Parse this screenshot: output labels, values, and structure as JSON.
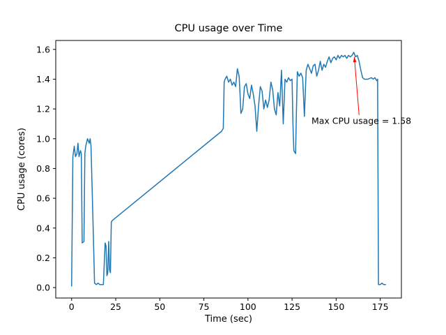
{
  "figure": {
    "background": "#ffffff"
  },
  "chart_data": {
    "type": "line",
    "title": "CPU usage over Time",
    "xlabel": "Time (sec)",
    "ylabel": "CPU usage (cores)",
    "xlim": [
      -9,
      187
    ],
    "ylim": [
      -0.07,
      1.66
    ],
    "xticks": [
      0,
      25,
      50,
      75,
      100,
      125,
      150,
      175
    ],
    "yticks": [
      0.0,
      0.2,
      0.4,
      0.6,
      0.8,
      1.0,
      1.2,
      1.4,
      1.6
    ],
    "grid": false,
    "legend": "none",
    "line_color": "#1f77b4",
    "series": [
      {
        "name": "CPU usage",
        "points": [
          [
            0,
            0.01
          ],
          [
            0.7,
            0.88
          ],
          [
            1.5,
            0.95
          ],
          [
            2.2,
            0.88
          ],
          [
            3,
            0.9
          ],
          [
            3.6,
            0.97
          ],
          [
            4.2,
            0.88
          ],
          [
            5,
            0.92
          ],
          [
            5.5,
            0.9
          ],
          [
            6,
            0.3
          ],
          [
            7,
            0.31
          ],
          [
            7.5,
            0.9
          ],
          [
            8,
            0.95
          ],
          [
            9,
            1.0
          ],
          [
            10,
            0.97
          ],
          [
            10.5,
            1.0
          ],
          [
            11,
            0.95
          ],
          [
            12,
            0.5
          ],
          [
            13,
            0.03
          ],
          [
            14,
            0.02
          ],
          [
            15,
            0.03
          ],
          [
            16,
            0.02
          ],
          [
            17,
            0.02
          ],
          [
            18,
            0.02
          ],
          [
            19,
            0.3
          ],
          [
            19.5,
            0.28
          ],
          [
            20,
            0.08
          ],
          [
            20.5,
            0.1
          ],
          [
            21,
            0.31
          ],
          [
            21.5,
            0.12
          ],
          [
            22,
            0.1
          ],
          [
            22.5,
            0.44
          ],
          [
            23,
            0.45
          ],
          [
            85,
            1.05
          ],
          [
            86,
            1.07
          ],
          [
            86.5,
            1.38
          ],
          [
            87,
            1.4
          ],
          [
            88,
            1.42
          ],
          [
            89,
            1.38
          ],
          [
            90,
            1.4
          ],
          [
            91,
            1.36
          ],
          [
            92,
            1.38
          ],
          [
            93,
            1.35
          ],
          [
            94,
            1.47
          ],
          [
            95,
            1.42
          ],
          [
            95.5,
            1.3
          ],
          [
            96,
            1.17
          ],
          [
            97,
            1.2
          ],
          [
            98,
            1.35
          ],
          [
            99,
            1.37
          ],
          [
            100,
            1.3
          ],
          [
            101,
            1.27
          ],
          [
            102,
            1.36
          ],
          [
            103,
            1.3
          ],
          [
            104,
            1.22
          ],
          [
            105,
            1.05
          ],
          [
            106,
            1.22
          ],
          [
            107,
            1.35
          ],
          [
            108,
            1.32
          ],
          [
            109,
            1.2
          ],
          [
            110,
            1.26
          ],
          [
            111,
            1.21
          ],
          [
            112,
            1.26
          ],
          [
            113,
            1.38
          ],
          [
            114,
            1.33
          ],
          [
            115,
            1.2
          ],
          [
            116,
            1.16
          ],
          [
            117,
            1.31
          ],
          [
            118,
            1.22
          ],
          [
            119,
            1.46
          ],
          [
            120,
            1.1
          ],
          [
            121,
            1.4
          ],
          [
            122,
            1.38
          ],
          [
            123,
            1.41
          ],
          [
            124,
            1.39
          ],
          [
            125,
            1.4
          ],
          [
            125.5,
            1.1
          ],
          [
            126,
            0.92
          ],
          [
            127,
            0.9
          ],
          [
            127.5,
            1.2
          ],
          [
            128,
            1.45
          ],
          [
            129,
            1.42
          ],
          [
            130,
            1.44
          ],
          [
            131,
            1.41
          ],
          [
            132,
            1.15
          ],
          [
            133,
            1.46
          ],
          [
            134,
            1.5
          ],
          [
            135,
            1.47
          ],
          [
            136,
            1.44
          ],
          [
            137,
            1.49
          ],
          [
            138,
            1.5
          ],
          [
            139,
            1.42
          ],
          [
            140,
            1.46
          ],
          [
            141,
            1.52
          ],
          [
            142,
            1.46
          ],
          [
            143,
            1.5
          ],
          [
            144,
            1.48
          ],
          [
            145,
            1.52
          ],
          [
            146,
            1.55
          ],
          [
            147,
            1.51
          ],
          [
            148,
            1.54
          ],
          [
            149,
            1.55
          ],
          [
            150,
            1.53
          ],
          [
            151,
            1.56
          ],
          [
            152,
            1.54
          ],
          [
            153,
            1.56
          ],
          [
            154,
            1.55
          ],
          [
            155,
            1.56
          ],
          [
            156,
            1.54
          ],
          [
            157,
            1.56
          ],
          [
            158,
            1.55
          ],
          [
            159,
            1.56
          ],
          [
            160,
            1.58
          ],
          [
            161,
            1.55
          ],
          [
            162,
            1.56
          ],
          [
            163,
            1.52
          ],
          [
            164,
            1.46
          ],
          [
            165,
            1.41
          ],
          [
            166,
            1.4
          ],
          [
            168,
            1.4
          ],
          [
            170,
            1.41
          ],
          [
            171,
            1.4
          ],
          [
            172,
            1.41
          ],
          [
            173,
            1.39
          ],
          [
            173.5,
            1.4
          ],
          [
            174,
            0.02
          ],
          [
            175,
            0.02
          ],
          [
            176,
            0.03
          ],
          [
            177,
            0.02
          ],
          [
            178,
            0.02
          ]
        ]
      }
    ],
    "annotation": {
      "text": "Max CPU usage = 1.58",
      "color": "#ff0000",
      "xy": [
        160,
        1.58
      ],
      "text_xy": [
        136,
        1.1
      ],
      "arrow_tail": [
        163,
        1.16
      ],
      "arrow_head": [
        160.3,
        1.55
      ]
    }
  }
}
